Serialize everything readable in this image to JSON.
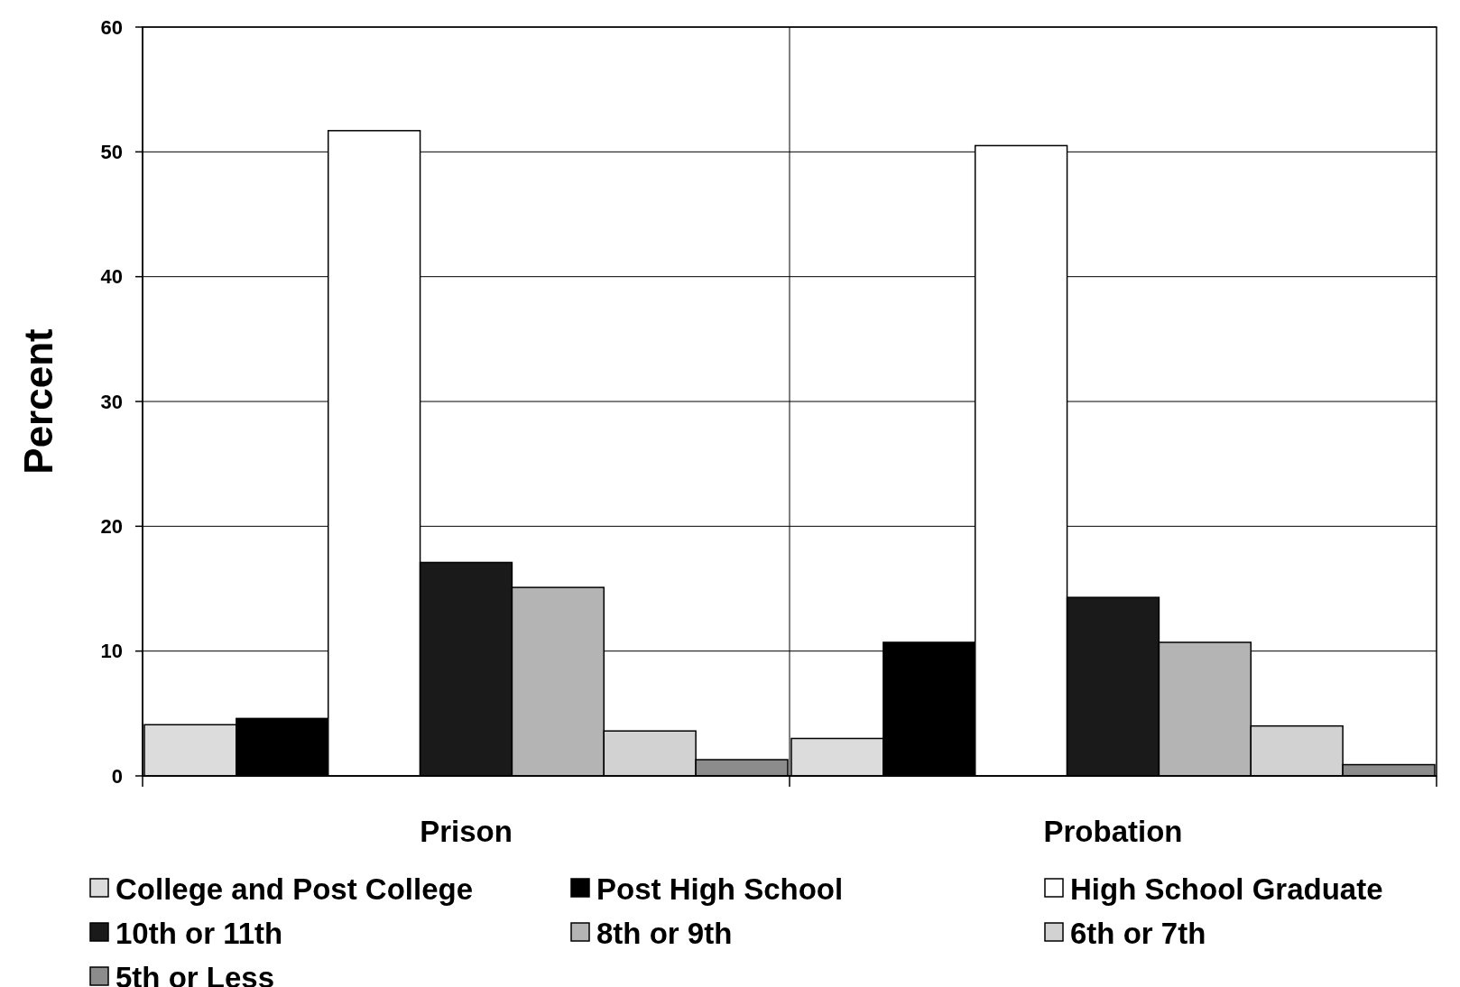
{
  "chart_data": {
    "type": "bar",
    "ylabel": "Percent",
    "categories": [
      "Prison",
      "Probation"
    ],
    "series": [
      {
        "name": "College and Post College",
        "color": "#dcdcdc",
        "values": [
          4.1,
          3.0
        ]
      },
      {
        "name": "Post High School",
        "color": "#000000",
        "values": [
          4.6,
          10.7
        ]
      },
      {
        "name": "High School Graduate",
        "color": "#ffffff",
        "values": [
          51.7,
          50.5
        ]
      },
      {
        "name": "10th or 11th",
        "color": "#1a1a1a",
        "values": [
          17.1,
          14.3
        ]
      },
      {
        "name": "8th or 9th",
        "color": "#b4b4b4",
        "values": [
          15.1,
          10.7
        ]
      },
      {
        "name": "6th or 7th",
        "color": "#d2d2d2",
        "values": [
          3.6,
          4.0
        ]
      },
      {
        "name": "5th or Less",
        "color": "#8c8c8c",
        "values": [
          1.3,
          0.9
        ]
      }
    ],
    "ylim": [
      0,
      60
    ],
    "yticks": [
      0,
      10,
      20,
      30,
      40,
      50,
      60
    ],
    "grid": true,
    "legend": "bottom"
  }
}
